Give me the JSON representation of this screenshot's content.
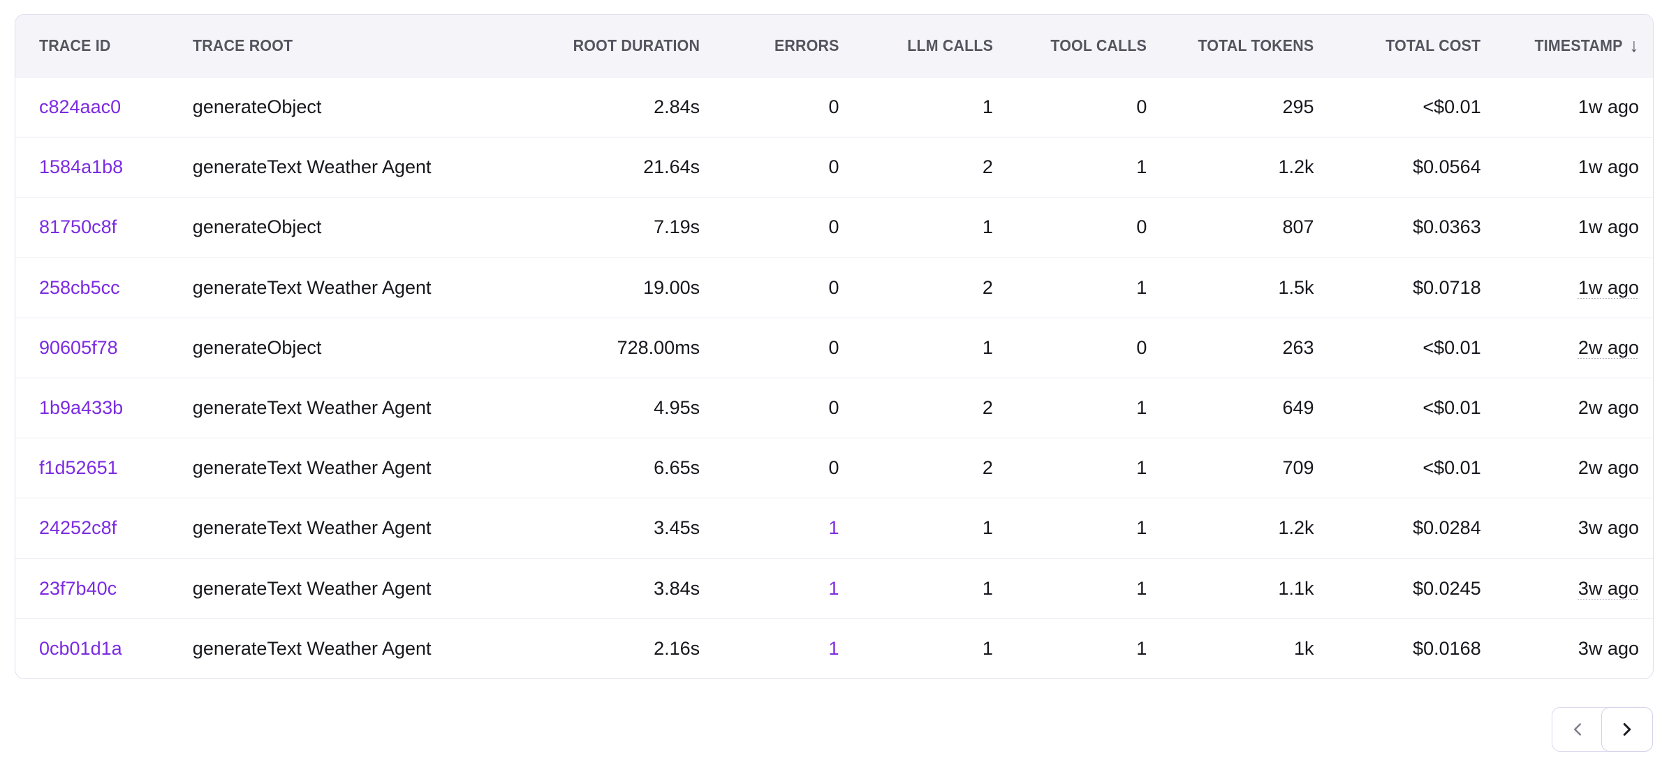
{
  "table": {
    "columns": [
      {
        "key": "trace_id",
        "label": "TRACE ID",
        "align": "left"
      },
      {
        "key": "trace_root",
        "label": "TRACE ROOT",
        "align": "left"
      },
      {
        "key": "root_duration",
        "label": "ROOT DURATION",
        "align": "right"
      },
      {
        "key": "errors",
        "label": "ERRORS",
        "align": "right"
      },
      {
        "key": "llm_calls",
        "label": "LLM CALLS",
        "align": "right"
      },
      {
        "key": "tool_calls",
        "label": "TOOL CALLS",
        "align": "right"
      },
      {
        "key": "total_tokens",
        "label": "TOTAL TOKENS",
        "align": "right"
      },
      {
        "key": "total_cost",
        "label": "TOTAL COST",
        "align": "right"
      },
      {
        "key": "timestamp",
        "label": "TIMESTAMP",
        "align": "right",
        "sort": "desc",
        "sort_icon": "↓"
      }
    ],
    "rows": [
      {
        "trace_id": "c824aac0",
        "trace_root": "generateObject",
        "root_duration": "2.84s",
        "errors": "0",
        "llm_calls": "1",
        "tool_calls": "0",
        "total_tokens": "295",
        "total_cost": "<$0.01",
        "timestamp": "1w ago",
        "errors_highlighted": false
      },
      {
        "trace_id": "1584a1b8",
        "trace_root": "generateText Weather Agent",
        "root_duration": "21.64s",
        "errors": "0",
        "llm_calls": "2",
        "tool_calls": "1",
        "total_tokens": "1.2k",
        "total_cost": "$0.0564",
        "timestamp": "1w ago",
        "errors_highlighted": false
      },
      {
        "trace_id": "81750c8f",
        "trace_root": "generateObject",
        "root_duration": "7.19s",
        "errors": "0",
        "llm_calls": "1",
        "tool_calls": "0",
        "total_tokens": "807",
        "total_cost": "$0.0363",
        "timestamp": "1w ago",
        "errors_highlighted": false
      },
      {
        "trace_id": "258cb5cc",
        "trace_root": "generateText Weather Agent",
        "root_duration": "19.00s",
        "errors": "0",
        "llm_calls": "2",
        "tool_calls": "1",
        "total_tokens": "1.5k",
        "total_cost": "$0.0718",
        "timestamp": "1w ago",
        "errors_highlighted": false
      },
      {
        "trace_id": "90605f78",
        "trace_root": "generateObject",
        "root_duration": "728.00ms",
        "errors": "0",
        "llm_calls": "1",
        "tool_calls": "0",
        "total_tokens": "263",
        "total_cost": "<$0.01",
        "timestamp": "2w ago",
        "errors_highlighted": false
      },
      {
        "trace_id": "1b9a433b",
        "trace_root": "generateText Weather Agent",
        "root_duration": "4.95s",
        "errors": "0",
        "llm_calls": "2",
        "tool_calls": "1",
        "total_tokens": "649",
        "total_cost": "<$0.01",
        "timestamp": "2w ago",
        "errors_highlighted": false
      },
      {
        "trace_id": "f1d52651",
        "trace_root": "generateText Weather Agent",
        "root_duration": "6.65s",
        "errors": "0",
        "llm_calls": "2",
        "tool_calls": "1",
        "total_tokens": "709",
        "total_cost": "<$0.01",
        "timestamp": "2w ago",
        "errors_highlighted": false
      },
      {
        "trace_id": "24252c8f",
        "trace_root": "generateText Weather Agent",
        "root_duration": "3.45s",
        "errors": "1",
        "llm_calls": "1",
        "tool_calls": "1",
        "total_tokens": "1.2k",
        "total_cost": "$0.0284",
        "timestamp": "3w ago",
        "errors_highlighted": true
      },
      {
        "trace_id": "23f7b40c",
        "trace_root": "generateText Weather Agent",
        "root_duration": "3.84s",
        "errors": "1",
        "llm_calls": "1",
        "tool_calls": "1",
        "total_tokens": "1.1k",
        "total_cost": "$0.0245",
        "timestamp": "3w ago",
        "errors_highlighted": true
      },
      {
        "trace_id": "0cb01d1a",
        "trace_root": "generateText Weather Agent",
        "root_duration": "2.16s",
        "errors": "1",
        "llm_calls": "1",
        "tool_calls": "1",
        "total_tokens": "1k",
        "total_cost": "$0.0168",
        "timestamp": "3w ago",
        "errors_highlighted": true
      }
    ]
  },
  "pagination": {
    "prev_icon": "chevron-left-icon",
    "next_icon": "chevron-right-icon",
    "prev_enabled": false,
    "next_enabled": true
  },
  "colors": {
    "accent_purple": "#7c2be2",
    "header_bg": "#f5f4f9",
    "header_text": "#55555f",
    "body_text": "#17171e",
    "card_border": "#dfdcf0",
    "row_divider": "#eceaf6"
  }
}
